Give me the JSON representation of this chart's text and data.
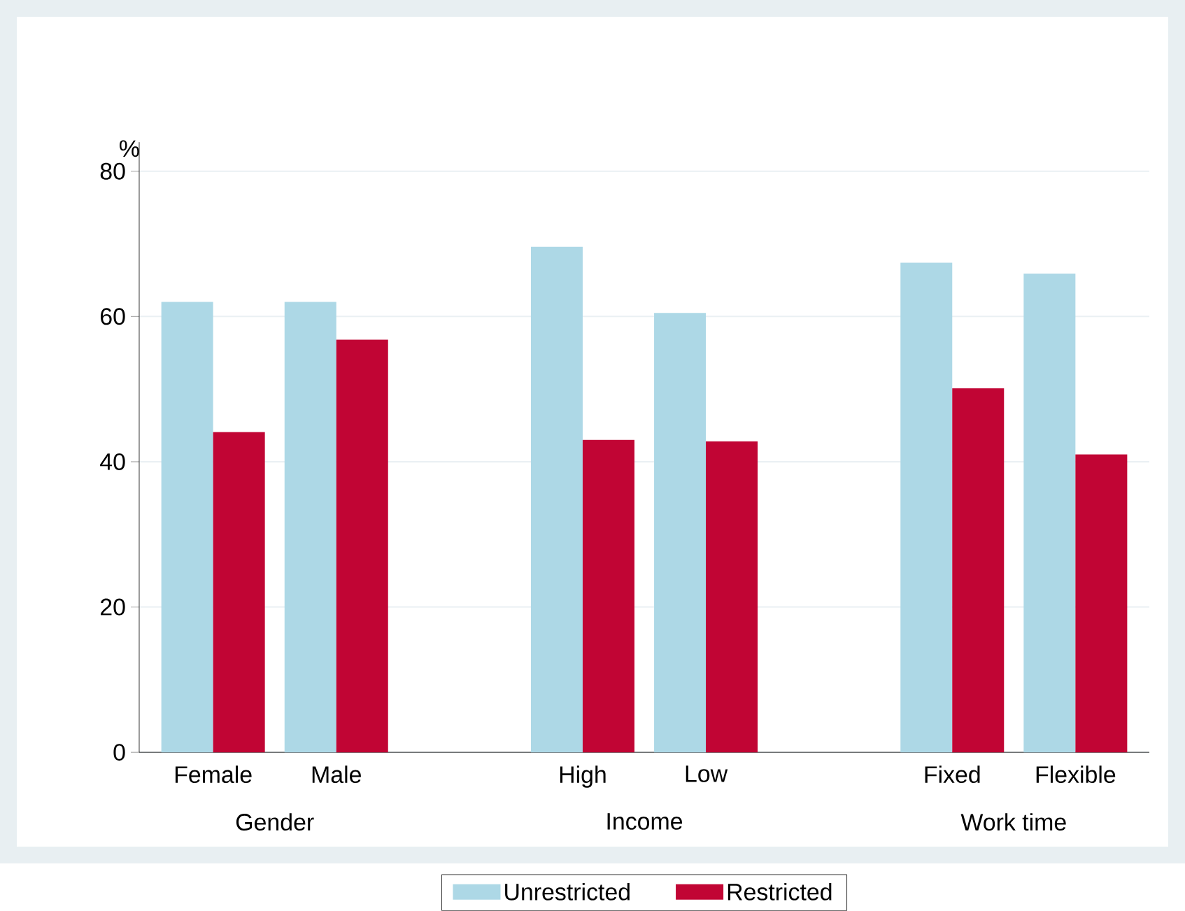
{
  "chart_data": {
    "type": "bar",
    "categories": [
      "Female",
      "Male",
      null,
      "High",
      "Low",
      null,
      "Fixed",
      "Flexible"
    ],
    "series": [
      {
        "name": "Unrestricted",
        "color": "#add8e6",
        "values": [
          62,
          62,
          null,
          69.6,
          60.5,
          null,
          67.4,
          65.9
        ]
      },
      {
        "name": "Restricted",
        "color": "#c10534",
        "values": [
          44.1,
          56.8,
          null,
          43,
          42.8,
          null,
          50.1,
          41
        ]
      }
    ],
    "annotations": [
      "Gender",
      "Income",
      "Work time"
    ],
    "ylabel": "%",
    "ylim": [
      0,
      84
    ],
    "yticks": [
      0,
      20,
      40,
      60,
      80
    ],
    "grid": "y",
    "legend": "bottom"
  }
}
